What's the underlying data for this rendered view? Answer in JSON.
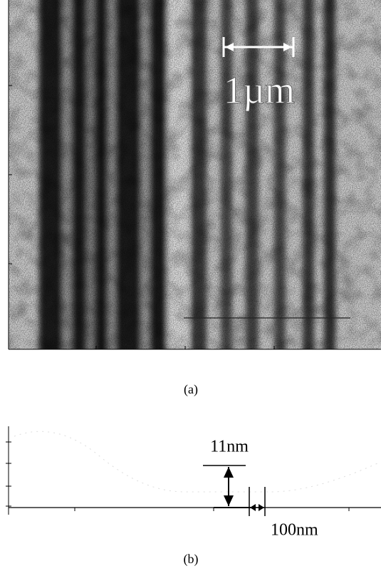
{
  "panel_a": {
    "scale_bar": "1µm",
    "caption": "(a)"
  },
  "panel_b": {
    "height_label": "11nm",
    "width_label": "100nm",
    "caption": "(b)"
  }
}
